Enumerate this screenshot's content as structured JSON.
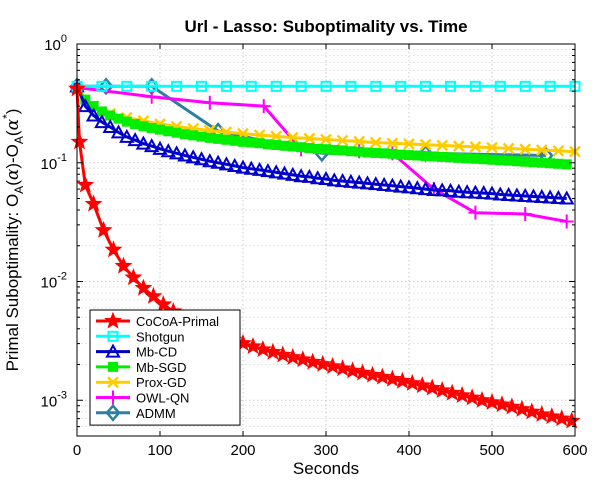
{
  "chart_data": {
    "type": "line",
    "title": "Url - Lasso: Suboptimality vs. Time",
    "xlabel": "Seconds",
    "ylabel": "Primal Suboptimality: O_A(α)-O_A(α*)",
    "ylabel_parts": {
      "main": "Primal Suboptimality: O",
      "sub1": "A",
      "mid1": "(",
      "alpha1": "α",
      "mid2": ")-O",
      "sub2": "A",
      "mid3": "(",
      "alpha2": "α",
      "sup": "*",
      "end": ")"
    },
    "yscale": "log",
    "xlim": [
      0,
      600
    ],
    "ylim": [
      0.0005,
      1
    ],
    "xticks": [
      0,
      100,
      200,
      300,
      400,
      500,
      600
    ],
    "xtick_labels": [
      "0",
      "100",
      "200",
      "300",
      "400",
      "500",
      "600"
    ],
    "yticks": [
      1,
      0.1,
      0.01,
      0.001
    ],
    "ytick_labels": [
      {
        "base": "10",
        "exp": "0"
      },
      {
        "base": "10",
        "exp": "-1"
      },
      {
        "base": "10",
        "exp": "-2"
      },
      {
        "base": "10",
        "exp": "-3"
      }
    ],
    "grid": true,
    "legend_position": "bottom-left",
    "series": [
      {
        "name": "CoCoA-Primal",
        "color": "#ff0000",
        "marker": "star",
        "x": [
          0,
          3,
          10,
          20,
          32,
          44,
          56,
          68,
          80,
          92,
          104,
          116,
          128,
          140,
          152,
          164,
          176,
          188,
          200,
          212,
          224,
          236,
          248,
          260,
          272,
          284,
          296,
          308,
          320,
          332,
          344,
          356,
          368,
          380,
          392,
          404,
          416,
          428,
          440,
          452,
          464,
          476,
          488,
          500,
          512,
          524,
          536,
          548,
          560,
          572,
          584,
          596
        ],
        "y": [
          0.42,
          0.15,
          0.065,
          0.045,
          0.027,
          0.0185,
          0.0135,
          0.0108,
          0.0088,
          0.0075,
          0.0064,
          0.0056,
          0.0049,
          0.0044,
          0.00405,
          0.00375,
          0.00347,
          0.00323,
          0.00302,
          0.00284,
          0.00268,
          0.00254,
          0.00241,
          0.0023,
          0.0022,
          0.0021,
          0.00201,
          0.00193,
          0.00185,
          0.00177,
          0.0017,
          0.00163,
          0.00157,
          0.00151,
          0.00145,
          0.00139,
          0.00133,
          0.00127,
          0.00121,
          0.00115,
          0.0011,
          0.00105,
          0.001,
          0.00096,
          0.00092,
          0.00088,
          0.00084,
          0.0008,
          0.00076,
          0.00073,
          0.0007,
          0.00067
        ]
      },
      {
        "name": "Shotgun",
        "color": "#00ffff",
        "marker": "square",
        "x": [
          0,
          30,
          60,
          90,
          120,
          150,
          180,
          210,
          240,
          270,
          300,
          330,
          360,
          390,
          420,
          450,
          480,
          510,
          540,
          570,
          600
        ],
        "y": [
          0.44,
          0.44,
          0.44,
          0.44,
          0.44,
          0.44,
          0.44,
          0.44,
          0.44,
          0.44,
          0.44,
          0.44,
          0.44,
          0.44,
          0.44,
          0.44,
          0.44,
          0.44,
          0.44,
          0.44,
          0.44
        ]
      },
      {
        "name": "Mb-CD",
        "color": "#0000cc",
        "marker": "triangle",
        "x": [
          0,
          10,
          20,
          30,
          40,
          50,
          60,
          70,
          80,
          90,
          100,
          110,
          120,
          130,
          140,
          150,
          160,
          170,
          180,
          190,
          200,
          210,
          220,
          230,
          240,
          250,
          260,
          270,
          280,
          290,
          300,
          310,
          320,
          330,
          340,
          350,
          360,
          370,
          380,
          390,
          400,
          410,
          420,
          430,
          440,
          450,
          460,
          470,
          480,
          490,
          500,
          510,
          520,
          530,
          540,
          550,
          560,
          570,
          580,
          590
        ],
        "y": [
          0.44,
          0.3,
          0.25,
          0.22,
          0.2,
          0.18,
          0.165,
          0.155,
          0.145,
          0.138,
          0.131,
          0.125,
          0.12,
          0.115,
          0.111,
          0.107,
          0.103,
          0.1,
          0.097,
          0.094,
          0.091,
          0.089,
          0.087,
          0.085,
          0.083,
          0.081,
          0.079,
          0.077,
          0.076,
          0.074,
          0.073,
          0.071,
          0.07,
          0.069,
          0.068,
          0.067,
          0.066,
          0.065,
          0.064,
          0.063,
          0.062,
          0.061,
          0.06,
          0.059,
          0.0585,
          0.058,
          0.057,
          0.0565,
          0.056,
          0.0555,
          0.055,
          0.054,
          0.0535,
          0.053,
          0.0525,
          0.052,
          0.0515,
          0.051,
          0.0505,
          0.05
        ]
      },
      {
        "name": "Mb-SGD",
        "color": "#00ee00",
        "marker": "square-filled",
        "x": [
          0,
          10,
          20,
          30,
          40,
          50,
          60,
          70,
          80,
          90,
          100,
          110,
          120,
          130,
          140,
          150,
          160,
          170,
          180,
          190,
          200,
          210,
          220,
          230,
          240,
          250,
          260,
          270,
          280,
          290,
          300,
          310,
          320,
          330,
          340,
          350,
          360,
          370,
          380,
          390,
          400,
          410,
          420,
          430,
          440,
          450,
          460,
          470,
          480,
          490,
          500,
          510,
          520,
          530,
          540,
          550,
          560,
          570,
          580,
          590
        ],
        "y": [
          0.42,
          0.34,
          0.3,
          0.27,
          0.25,
          0.235,
          0.222,
          0.212,
          0.203,
          0.196,
          0.19,
          0.184,
          0.179,
          0.174,
          0.17,
          0.166,
          0.162,
          0.159,
          0.156,
          0.153,
          0.15,
          0.148,
          0.146,
          0.143,
          0.141,
          0.139,
          0.137,
          0.135,
          0.133,
          0.131,
          0.13,
          0.128,
          0.127,
          0.125,
          0.124,
          0.122,
          0.121,
          0.12,
          0.119,
          0.117,
          0.116,
          0.115,
          0.114,
          0.113,
          0.112,
          0.111,
          0.11,
          0.109,
          0.108,
          0.107,
          0.106,
          0.105,
          0.104,
          0.103,
          0.102,
          0.101,
          0.1,
          0.099,
          0.098,
          0.097
        ]
      },
      {
        "name": "Prox-GD",
        "color": "#ffcc00",
        "marker": "x",
        "x": [
          0,
          20,
          40,
          60,
          80,
          100,
          120,
          140,
          160,
          180,
          200,
          220,
          240,
          260,
          280,
          300,
          320,
          340,
          360,
          380,
          400,
          420,
          440,
          460,
          480,
          500,
          520,
          540,
          560,
          580,
          600
        ],
        "y": [
          0.42,
          0.3,
          0.26,
          0.24,
          0.225,
          0.212,
          0.202,
          0.194,
          0.187,
          0.181,
          0.176,
          0.171,
          0.167,
          0.163,
          0.16,
          0.157,
          0.154,
          0.151,
          0.148,
          0.146,
          0.144,
          0.142,
          0.14,
          0.138,
          0.136,
          0.134,
          0.132,
          0.13,
          0.128,
          0.126,
          0.124
        ]
      },
      {
        "name": "OWL-QN",
        "color": "#ff00ff",
        "marker": "plus",
        "x": [
          0,
          90,
          160,
          225,
          270,
          340,
          380,
          430,
          480,
          540,
          590
        ],
        "y": [
          0.43,
          0.36,
          0.32,
          0.3,
          0.13,
          0.125,
          0.12,
          0.06,
          0.038,
          0.037,
          0.032
        ]
      },
      {
        "name": "ADMM",
        "color": "#2e7fa0",
        "marker": "diamond",
        "x": [
          0,
          35,
          90,
          170,
          295,
          420,
          565
        ],
        "y": [
          0.44,
          0.44,
          0.44,
          0.185,
          0.12,
          0.12,
          0.115
        ]
      }
    ]
  }
}
